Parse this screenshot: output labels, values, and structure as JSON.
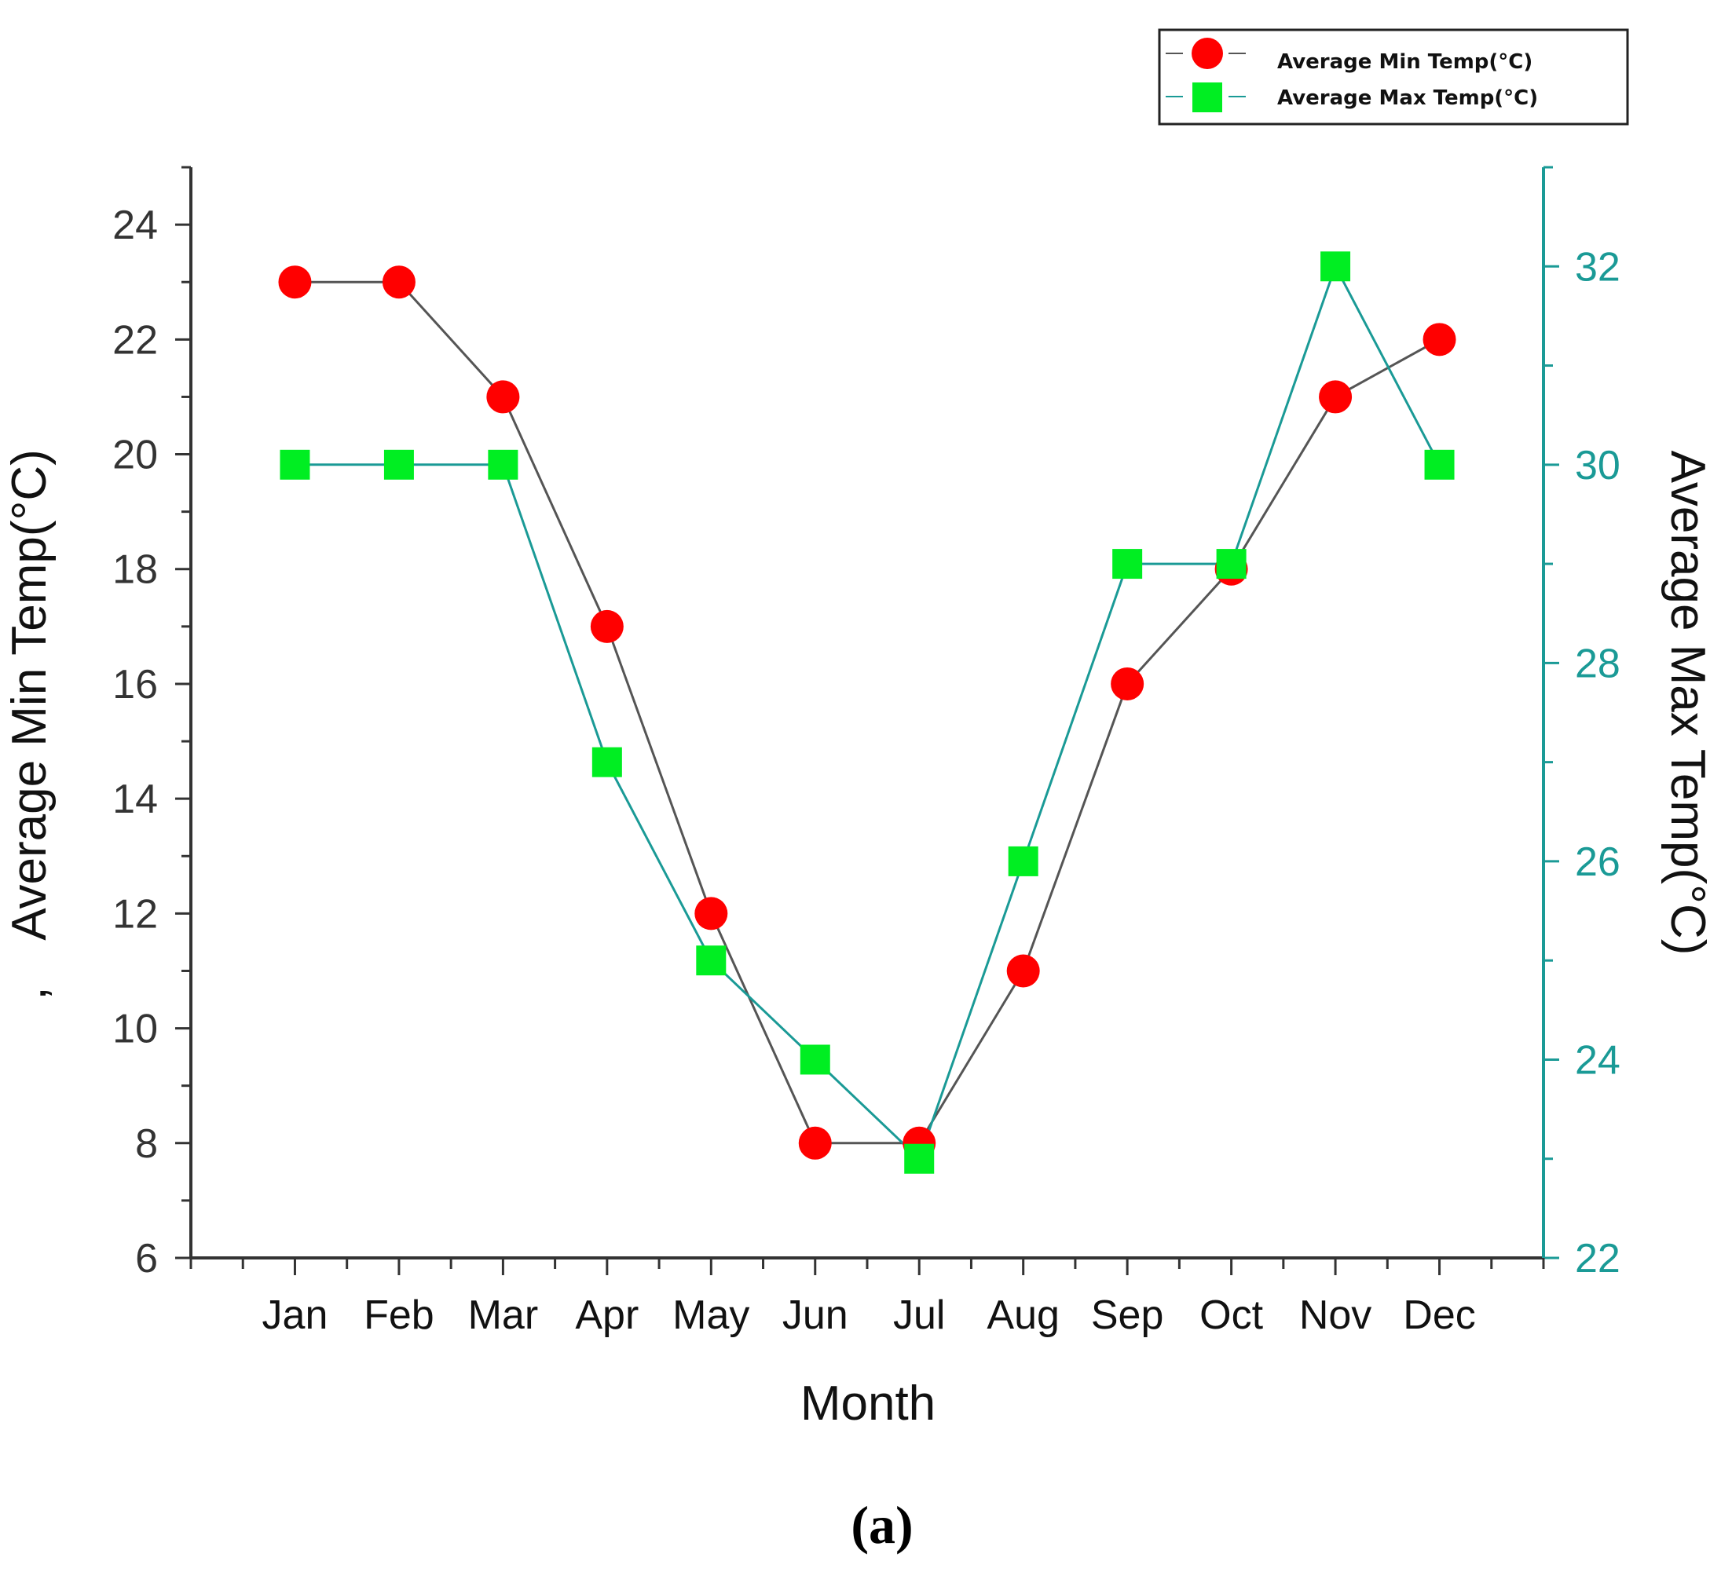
{
  "chart_data": {
    "type": "line",
    "categories": [
      "Jan",
      "Feb",
      "Mar",
      "Apr",
      "May",
      "Jun",
      "Jul",
      "Aug",
      "Sep",
      "Oct",
      "Nov",
      "Dec"
    ],
    "series": [
      {
        "name": "Average Min Temp(°C)",
        "axis": "left",
        "marker": "circle",
        "color": "#ff0000",
        "line_color": "#555555",
        "values": [
          23,
          23,
          21,
          17,
          12,
          8,
          8,
          11,
          16,
          18,
          21,
          22
        ]
      },
      {
        "name": "Average Max Temp(°C)",
        "axis": "right",
        "marker": "square",
        "color": "#00ee22",
        "line_color": "#1a9a96",
        "values": [
          30,
          30,
          30,
          27,
          25,
          24,
          23,
          26,
          29,
          29,
          32,
          30
        ]
      }
    ],
    "xlabel": "Month",
    "ylabel_left": "Average Min Temp(°C)",
    "ylabel_right": "Average Max Temp(°C)",
    "ylim_left": [
      6,
      25
    ],
    "ylim_right": [
      22,
      33
    ],
    "yticks_left": [
      6,
      8,
      10,
      12,
      14,
      16,
      18,
      20,
      22,
      24
    ],
    "yticks_right": [
      22,
      24,
      26,
      28,
      30,
      32
    ],
    "legend_position": "top-right",
    "grid": false,
    "left_axis_color": "#333333",
    "right_axis_color": "#1a9a96",
    "stray_mark": ","
  },
  "caption": "(a)"
}
